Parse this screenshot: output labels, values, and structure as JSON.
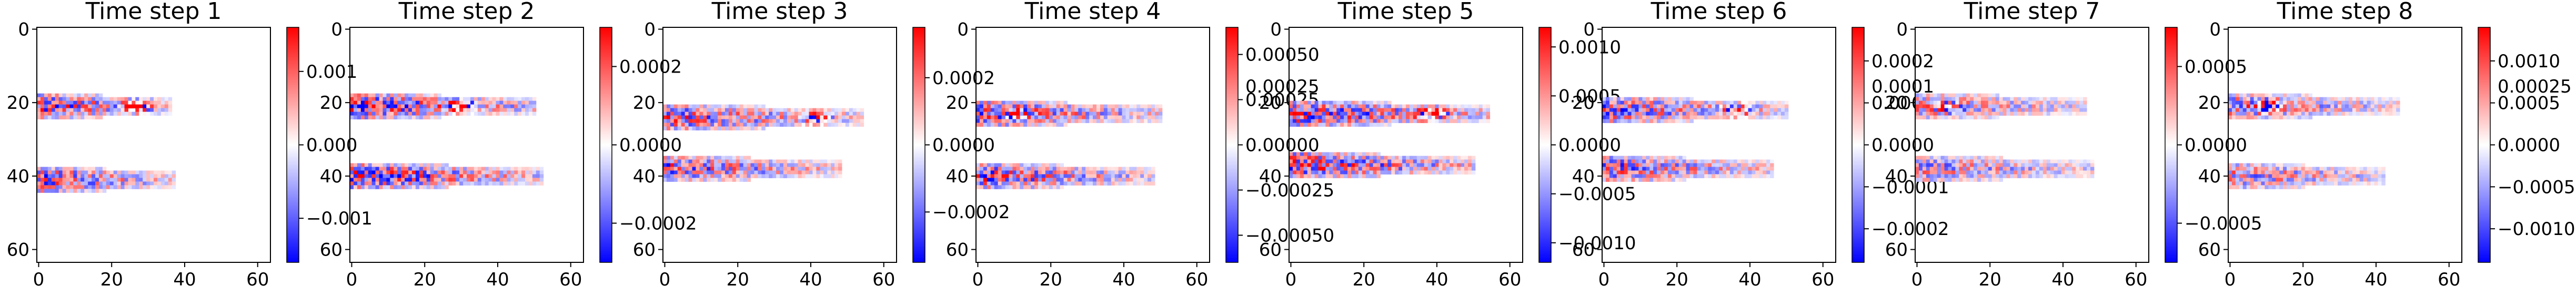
{
  "chart_data": [
    {
      "type": "heatmap",
      "title": "Time step 1",
      "colormap": "bwr",
      "extent": [
        0,
        64,
        64,
        0
      ],
      "xticks": [
        "0",
        "20",
        "40",
        "60"
      ],
      "yticks": [
        "0",
        "20",
        "40",
        "60"
      ],
      "colorbar": {
        "vmin": -0.0016,
        "vmax": 0.0016,
        "ticks": [
          {
            "value": 0.001,
            "label": "0.001"
          },
          {
            "value": 0,
            "label": "0.000"
          },
          {
            "value": -0.001,
            "label": "−0.001"
          }
        ]
      },
      "features": {
        "upper_band_y": 21,
        "upper_band_x_end": 34,
        "upper_hotspot_x": 27,
        "lower_band_y": 41,
        "lower_band_x_end": 35,
        "intensity": 0.9
      }
    },
    {
      "type": "heatmap",
      "title": "Time step 2",
      "colormap": "bwr",
      "extent": [
        0,
        64,
        64,
        0
      ],
      "xticks": [
        "0",
        "20",
        "40",
        "60"
      ],
      "yticks": [
        "0",
        "20",
        "40",
        "60"
      ],
      "colorbar": {
        "vmin": -0.0003,
        "vmax": 0.0003,
        "ticks": [
          {
            "value": 0.0002,
            "label": "0.0002"
          },
          {
            "value": 0,
            "label": "0.0000"
          },
          {
            "value": -0.0002,
            "label": "−0.0002"
          }
        ]
      },
      "features": {
        "upper_band_y": 21,
        "upper_band_x_end": 48,
        "upper_hotspot_x": 30,
        "lower_band_y": 40,
        "lower_band_x_end": 50,
        "intensity": 1.0
      }
    },
    {
      "type": "heatmap",
      "title": "Time step 3",
      "colormap": "bwr",
      "extent": [
        0,
        64,
        64,
        0
      ],
      "xticks": [
        "0",
        "20",
        "40",
        "60"
      ],
      "yticks": [
        "0",
        "20",
        "40",
        "60"
      ],
      "colorbar": {
        "vmin": -0.00035,
        "vmax": 0.00035,
        "ticks": [
          {
            "value": 0.0002,
            "label": "0.0002"
          },
          {
            "value": 0,
            "label": "0.0000"
          },
          {
            "value": -0.0002,
            "label": "−0.0002"
          }
        ]
      },
      "features": {
        "upper_band_y": 24,
        "upper_band_x_end": 52,
        "upper_hotspot_x": 41,
        "lower_band_y": 38,
        "lower_band_x_end": 46,
        "intensity": 0.85
      }
    },
    {
      "type": "heatmap",
      "title": "Time step 4",
      "colormap": "bwr",
      "extent": [
        0,
        64,
        64,
        0
      ],
      "xticks": [
        "0",
        "20",
        "40",
        "60"
      ],
      "yticks": [
        "0",
        "20",
        "40",
        "60"
      ],
      "colorbar": {
        "vmin": -0.00065,
        "vmax": 0.00065,
        "ticks": [
          {
            "value": 0.0005,
            "label": "0.00050"
          },
          {
            "value": 0.00025,
            "label": "0.00025"
          },
          {
            "value": 0,
            "label": "0.00000"
          },
          {
            "value": -0.00025,
            "label": "−0.00025"
          },
          {
            "value": -0.0005,
            "label": "−0.00050"
          }
        ]
      },
      "features": {
        "upper_band_y": 23,
        "upper_band_x_end": 48,
        "upper_hotspot_x": 10,
        "lower_band_y": 40,
        "lower_band_x_end": 46,
        "intensity": 0.9
      }
    },
    {
      "type": "heatmap",
      "title": "Time step 5",
      "colormap": "bwr",
      "extent": [
        0,
        64,
        64,
        0
      ],
      "xticks": [
        "0",
        "20",
        "40",
        "60"
      ],
      "yticks": [
        "0",
        "20",
        "40",
        "60"
      ],
      "colorbar": {
        "vmin": -0.0012,
        "vmax": 0.0012,
        "ticks": [
          {
            "value": 0.001,
            "label": "0.0010"
          },
          {
            "value": 0.0005,
            "label": "0.0005"
          },
          {
            "value": 0,
            "label": "0.0000"
          },
          {
            "value": -0.0005,
            "label": "−0.0005"
          },
          {
            "value": -0.001,
            "label": "−0.0010"
          }
        ]
      },
      "features": {
        "upper_band_y": 23,
        "upper_band_x_end": 52,
        "upper_hotspot_x": 38,
        "lower_band_y": 37,
        "lower_band_x_end": 48,
        "intensity": 1.0
      }
    },
    {
      "type": "heatmap",
      "title": "Time step 6",
      "colormap": "bwr",
      "extent": [
        0,
        64,
        64,
        0
      ],
      "xticks": [
        "0",
        "20",
        "40",
        "60"
      ],
      "yticks": [
        "0",
        "20",
        "40",
        "60"
      ],
      "colorbar": {
        "vmin": -0.00028,
        "vmax": 0.00028,
        "ticks": [
          {
            "value": 0.0002,
            "label": "0.0002"
          },
          {
            "value": 0.0001,
            "label": "0.0001"
          },
          {
            "value": 0,
            "label": "0.0000"
          },
          {
            "value": -0.0001,
            "label": "−0.0001"
          },
          {
            "value": -0.0002,
            "label": "−0.0002"
          }
        ]
      },
      "features": {
        "upper_band_y": 22,
        "upper_band_x_end": 48,
        "upper_hotspot_x": 36,
        "lower_band_y": 38,
        "lower_band_x_end": 44,
        "intensity": 0.85
      }
    },
    {
      "type": "heatmap",
      "title": "Time step 7",
      "colormap": "bwr",
      "extent": [
        0,
        64,
        64,
        0
      ],
      "xticks": [
        "0",
        "20",
        "40",
        "60"
      ],
      "yticks": [
        "0",
        "20",
        "40",
        "60"
      ],
      "colorbar": {
        "vmin": -0.00075,
        "vmax": 0.00075,
        "ticks": [
          {
            "value": 0.0005,
            "label": "0.0005"
          },
          {
            "value": 0,
            "label": "0.0000"
          },
          {
            "value": -0.0005,
            "label": "−0.0005"
          }
        ]
      },
      "features": {
        "upper_band_y": 21,
        "upper_band_x_end": 44,
        "upper_hotspot_x": 8,
        "lower_band_y": 38,
        "lower_band_x_end": 46,
        "intensity": 0.7
      }
    },
    {
      "type": "heatmap",
      "title": "Time step 8",
      "colormap": "bwr",
      "extent": [
        0,
        64,
        64,
        0
      ],
      "xticks": [
        "0",
        "20",
        "40",
        "60"
      ],
      "yticks": [
        "0",
        "20",
        "40",
        "60"
      ],
      "colorbar": {
        "vmin": -0.0014,
        "vmax": 0.0014,
        "ticks": [
          {
            "value": 0.001,
            "label": "0.0010"
          },
          {
            "value": 0.0005,
            "label": "0.0005"
          },
          {
            "value": 0,
            "label": "0.0000"
          },
          {
            "value": -0.0005,
            "label": "−0.0005"
          },
          {
            "value": -0.001,
            "label": "−0.0010"
          }
        ]
      },
      "features": {
        "upper_band_y": 21,
        "upper_band_x_end": 44,
        "upper_hotspot_x": 10,
        "lower_band_y": 40,
        "lower_band_x_end": 40,
        "intensity": 0.75
      }
    }
  ],
  "overlap_labels": [
    {
      "text": "0.00025",
      "after_panel": 4
    },
    {
      "text": "0.0001",
      "after_panel": 6
    },
    {
      "text": "0.00025",
      "after_panel": 8
    }
  ]
}
